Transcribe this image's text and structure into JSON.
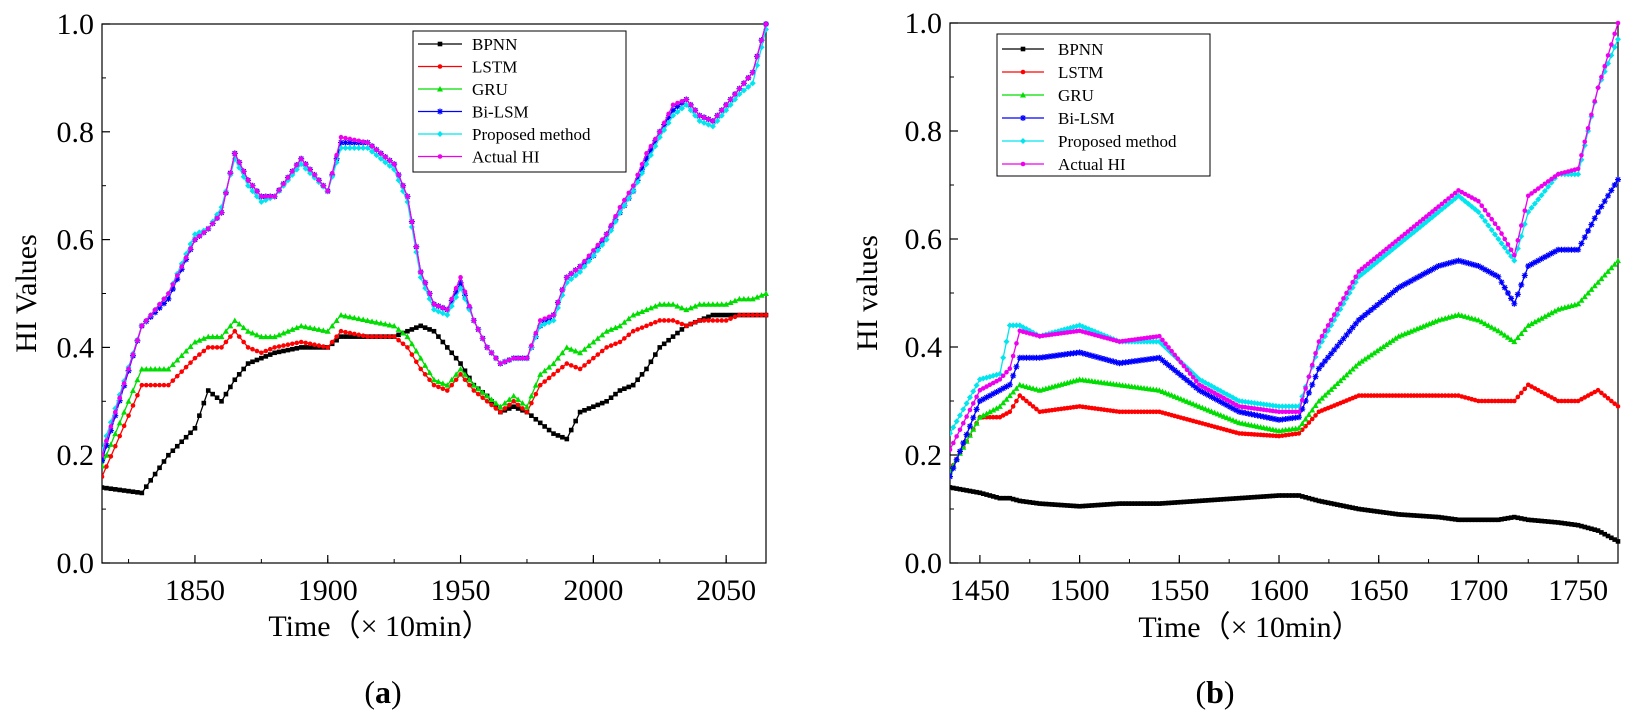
{
  "figure": {
    "panel_a_label_prefix": "(",
    "panel_a_label_letter": "a",
    "panel_a_label_suffix": ")",
    "panel_b_label_prefix": "(",
    "panel_b_label_letter": "b",
    "panel_b_label_suffix": ")"
  },
  "chart_data": [
    {
      "type": "line",
      "panel": "a",
      "xlabel": "Time（× 10min）",
      "ylabel": "HI Values",
      "xlim": [
        1815,
        2065
      ],
      "ylim": [
        0.0,
        1.0
      ],
      "xticks": [
        1850,
        1900,
        1950,
        2000,
        2050
      ],
      "xtick_labels": [
        "1850",
        "1900",
        "1950",
        "2000",
        "2050"
      ],
      "yticks": [
        0.0,
        0.2,
        0.4,
        0.6,
        0.8,
        1.0
      ],
      "ytick_labels": [
        "0.0",
        "0.2",
        "0.4",
        "0.6",
        "0.8",
        "1.0"
      ],
      "legend_position": "top-right",
      "x": [
        1815,
        1830,
        1840,
        1850,
        1855,
        1860,
        1865,
        1870,
        1875,
        1880,
        1890,
        1900,
        1905,
        1915,
        1925,
        1930,
        1935,
        1940,
        1945,
        1950,
        1955,
        1960,
        1965,
        1970,
        1975,
        1980,
        1985,
        1990,
        1995,
        2000,
        2005,
        2010,
        2015,
        2020,
        2025,
        2030,
        2035,
        2040,
        2045,
        2050,
        2055,
        2060,
        2065
      ],
      "series": [
        {
          "name": "BPNN",
          "color": "#000000",
          "marker": "square",
          "values": [
            0.14,
            0.13,
            0.2,
            0.25,
            0.32,
            0.3,
            0.34,
            0.37,
            0.38,
            0.39,
            0.4,
            0.4,
            0.42,
            0.42,
            0.42,
            0.43,
            0.44,
            0.43,
            0.4,
            0.37,
            0.33,
            0.31,
            0.28,
            0.29,
            0.28,
            0.26,
            0.24,
            0.23,
            0.28,
            0.29,
            0.3,
            0.32,
            0.33,
            0.36,
            0.4,
            0.42,
            0.44,
            0.45,
            0.46,
            0.46,
            0.46,
            0.46,
            0.46
          ]
        },
        {
          "name": "LSTM",
          "color": "#ff0000",
          "marker": "circle",
          "values": [
            0.16,
            0.33,
            0.33,
            0.38,
            0.4,
            0.4,
            0.43,
            0.4,
            0.39,
            0.4,
            0.41,
            0.4,
            0.43,
            0.42,
            0.42,
            0.4,
            0.36,
            0.33,
            0.32,
            0.35,
            0.32,
            0.3,
            0.28,
            0.3,
            0.28,
            0.33,
            0.35,
            0.37,
            0.36,
            0.38,
            0.4,
            0.41,
            0.43,
            0.44,
            0.45,
            0.45,
            0.44,
            0.45,
            0.45,
            0.45,
            0.46,
            0.46,
            0.46
          ]
        },
        {
          "name": "GRU",
          "color": "#00dd00",
          "marker": "triangle",
          "values": [
            0.18,
            0.36,
            0.36,
            0.41,
            0.42,
            0.42,
            0.45,
            0.43,
            0.42,
            0.42,
            0.44,
            0.43,
            0.46,
            0.45,
            0.44,
            0.42,
            0.38,
            0.34,
            0.33,
            0.36,
            0.33,
            0.31,
            0.29,
            0.31,
            0.29,
            0.35,
            0.37,
            0.4,
            0.39,
            0.41,
            0.43,
            0.44,
            0.46,
            0.47,
            0.48,
            0.48,
            0.47,
            0.48,
            0.48,
            0.48,
            0.49,
            0.49,
            0.5
          ]
        },
        {
          "name": "Bi-LSM",
          "color": "#0000ff",
          "marker": "star",
          "values": [
            0.19,
            0.44,
            0.49,
            0.6,
            0.62,
            0.65,
            0.76,
            0.71,
            0.68,
            0.68,
            0.75,
            0.69,
            0.78,
            0.78,
            0.74,
            0.68,
            0.54,
            0.48,
            0.47,
            0.52,
            0.45,
            0.4,
            0.37,
            0.38,
            0.38,
            0.44,
            0.46,
            0.53,
            0.55,
            0.57,
            0.61,
            0.65,
            0.69,
            0.75,
            0.8,
            0.84,
            0.86,
            0.83,
            0.82,
            0.85,
            0.88,
            0.91,
            1.0
          ]
        },
        {
          "name": "Proposed method",
          "color": "#00e5ee",
          "marker": "diamond",
          "values": [
            0.21,
            0.44,
            0.5,
            0.61,
            0.62,
            0.66,
            0.75,
            0.7,
            0.67,
            0.68,
            0.74,
            0.69,
            0.77,
            0.77,
            0.73,
            0.67,
            0.53,
            0.47,
            0.46,
            0.51,
            0.45,
            0.4,
            0.37,
            0.38,
            0.38,
            0.44,
            0.45,
            0.52,
            0.54,
            0.57,
            0.6,
            0.65,
            0.69,
            0.74,
            0.79,
            0.83,
            0.85,
            0.82,
            0.81,
            0.84,
            0.87,
            0.89,
            0.99
          ]
        },
        {
          "name": "Actual HI",
          "color": "#ee00ee",
          "marker": "circle",
          "values": [
            0.2,
            0.44,
            0.5,
            0.6,
            0.62,
            0.65,
            0.76,
            0.71,
            0.68,
            0.68,
            0.75,
            0.69,
            0.79,
            0.78,
            0.74,
            0.68,
            0.54,
            0.48,
            0.47,
            0.53,
            0.45,
            0.4,
            0.37,
            0.38,
            0.38,
            0.45,
            0.46,
            0.53,
            0.55,
            0.58,
            0.61,
            0.66,
            0.7,
            0.76,
            0.8,
            0.85,
            0.86,
            0.83,
            0.82,
            0.85,
            0.88,
            0.91,
            1.0
          ]
        }
      ]
    },
    {
      "type": "line",
      "panel": "b",
      "xlabel": "Time（× 10min）",
      "ylabel": "HI values",
      "xlim": [
        1435,
        1770
      ],
      "ylim": [
        0.0,
        1.0
      ],
      "xticks": [
        1450,
        1500,
        1550,
        1600,
        1650,
        1700,
        1750
      ],
      "xtick_labels": [
        "1450",
        "1500",
        "1550",
        "1600",
        "1650",
        "1700",
        "1750"
      ],
      "yticks": [
        0.0,
        0.2,
        0.4,
        0.6,
        0.8,
        1.0
      ],
      "ytick_labels": [
        "0.0",
        "0.2",
        "0.4",
        "0.6",
        "0.8",
        "1.0"
      ],
      "legend_position": "top-left",
      "x": [
        1435,
        1450,
        1460,
        1465,
        1470,
        1480,
        1500,
        1520,
        1540,
        1560,
        1580,
        1600,
        1610,
        1620,
        1640,
        1660,
        1680,
        1690,
        1700,
        1710,
        1718,
        1725,
        1740,
        1750,
        1760,
        1770
      ],
      "series": [
        {
          "name": "BPNN",
          "color": "#000000",
          "marker": "square",
          "values": [
            0.14,
            0.13,
            0.12,
            0.12,
            0.115,
            0.11,
            0.105,
            0.11,
            0.11,
            0.115,
            0.12,
            0.125,
            0.125,
            0.115,
            0.1,
            0.09,
            0.085,
            0.08,
            0.08,
            0.08,
            0.085,
            0.08,
            0.075,
            0.07,
            0.06,
            0.04
          ]
        },
        {
          "name": "LSTM",
          "color": "#ff0000",
          "marker": "circle",
          "values": [
            0.17,
            0.27,
            0.27,
            0.28,
            0.31,
            0.28,
            0.29,
            0.28,
            0.28,
            0.26,
            0.24,
            0.235,
            0.24,
            0.28,
            0.31,
            0.31,
            0.31,
            0.31,
            0.3,
            0.3,
            0.3,
            0.33,
            0.3,
            0.3,
            0.32,
            0.29
          ]
        },
        {
          "name": "GRU",
          "color": "#00dd00",
          "marker": "triangle",
          "values": [
            0.17,
            0.27,
            0.29,
            0.31,
            0.33,
            0.32,
            0.34,
            0.33,
            0.32,
            0.29,
            0.26,
            0.245,
            0.25,
            0.3,
            0.37,
            0.42,
            0.45,
            0.46,
            0.45,
            0.43,
            0.41,
            0.44,
            0.47,
            0.48,
            0.52,
            0.56
          ]
        },
        {
          "name": "Bi-LSM",
          "color": "#0000ff",
          "marker": "star",
          "values": [
            0.16,
            0.3,
            0.32,
            0.33,
            0.38,
            0.38,
            0.39,
            0.37,
            0.38,
            0.32,
            0.28,
            0.265,
            0.27,
            0.36,
            0.45,
            0.51,
            0.55,
            0.56,
            0.55,
            0.53,
            0.48,
            0.55,
            0.58,
            0.58,
            0.65,
            0.71
          ]
        },
        {
          "name": "Proposed method",
          "color": "#00e5ee",
          "marker": "diamond",
          "values": [
            0.24,
            0.34,
            0.35,
            0.44,
            0.44,
            0.42,
            0.44,
            0.41,
            0.41,
            0.34,
            0.3,
            0.29,
            0.29,
            0.4,
            0.53,
            0.59,
            0.65,
            0.68,
            0.65,
            0.6,
            0.56,
            0.65,
            0.72,
            0.72,
            0.88,
            0.97
          ]
        },
        {
          "name": "Actual HI",
          "color": "#ee00ee",
          "marker": "circle",
          "values": [
            0.21,
            0.32,
            0.34,
            0.36,
            0.43,
            0.42,
            0.43,
            0.41,
            0.42,
            0.33,
            0.29,
            0.28,
            0.28,
            0.41,
            0.54,
            0.6,
            0.66,
            0.69,
            0.67,
            0.62,
            0.57,
            0.68,
            0.72,
            0.73,
            0.88,
            1.0
          ]
        }
      ]
    }
  ]
}
